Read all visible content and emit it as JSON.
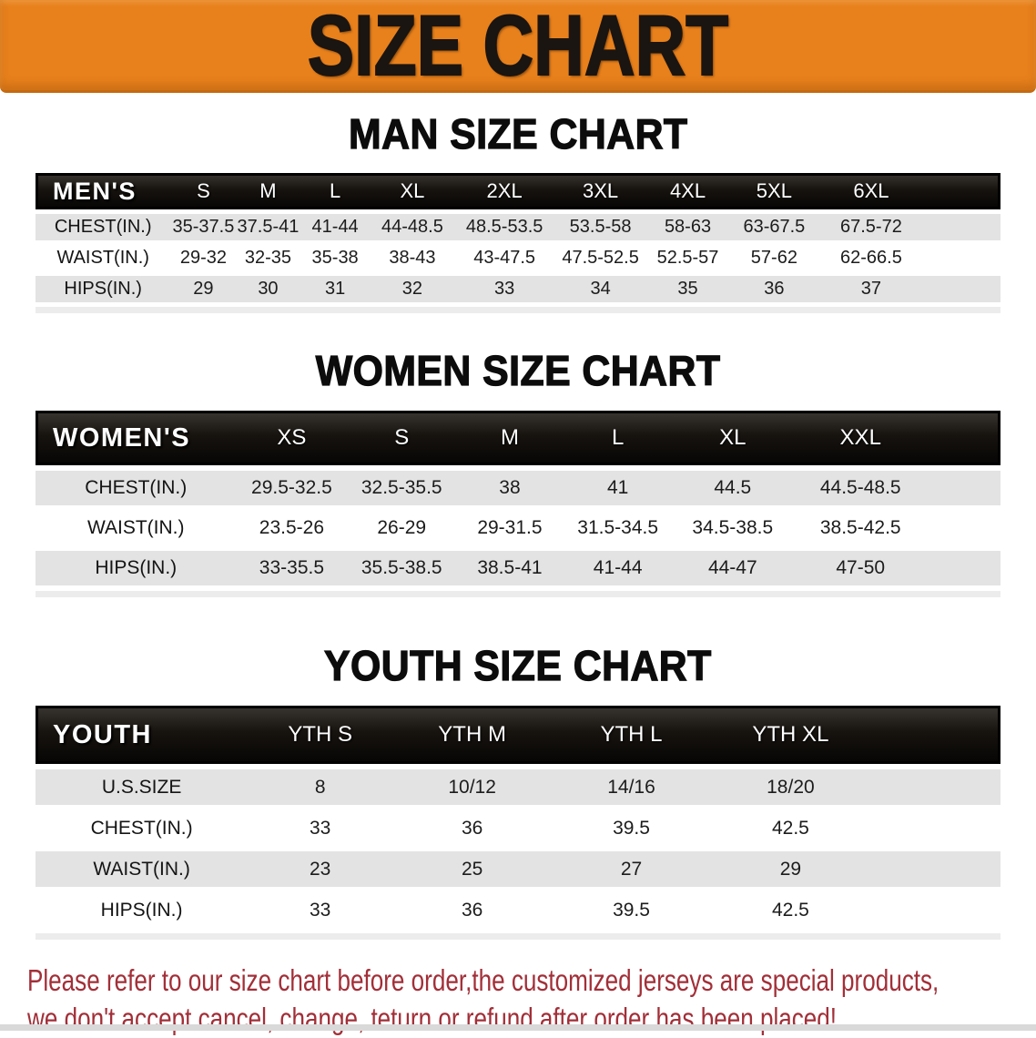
{
  "banner": {
    "title": "SIZE CHART"
  },
  "colors": {
    "banner_orange": "#E8811C",
    "band_black": "#17130F",
    "row_stripe": "#E3E3E3",
    "disclaimer_red": "#A22F38"
  },
  "sections": [
    {
      "heading": "MAN SIZE CHART",
      "label": "MEN'S",
      "columns": [
        "S",
        "M",
        "L",
        "XL",
        "2XL",
        "3XL",
        "4XL",
        "5XL",
        "6XL"
      ],
      "rows": [
        {
          "label": "CHEST(IN.)",
          "values": [
            "35-37.5",
            "37.5-41",
            "41-44",
            "44-48.5",
            "48.5-53.5",
            "53.5-58",
            "58-63",
            "63-67.5",
            "67.5-72"
          ]
        },
        {
          "label": "WAIST(IN.)",
          "values": [
            "29-32",
            "32-35",
            "35-38",
            "38-43",
            "43-47.5",
            "47.5-52.5",
            "52.5-57",
            "57-62",
            "62-66.5"
          ]
        },
        {
          "label": "HIPS(IN.)",
          "values": [
            "29",
            "30",
            "31",
            "32",
            "33",
            "34",
            "35",
            "36",
            "37"
          ]
        }
      ]
    },
    {
      "heading": "WOMEN SIZE CHART",
      "label": "WOMEN'S",
      "columns": [
        "XS",
        "S",
        "M",
        "L",
        "XL",
        "XXL"
      ],
      "rows": [
        {
          "label": "CHEST(IN.)",
          "values": [
            "29.5-32.5",
            "32.5-35.5",
            "38",
            "41",
            "44.5",
            "44.5-48.5"
          ]
        },
        {
          "label": "WAIST(IN.)",
          "values": [
            "23.5-26",
            "26-29",
            "29-31.5",
            "31.5-34.5",
            "34.5-38.5",
            "38.5-42.5"
          ]
        },
        {
          "label": "HIPS(IN.)",
          "values": [
            "33-35.5",
            "35.5-38.5",
            "38.5-41",
            "41-44",
            "44-47",
            "47-50"
          ]
        }
      ]
    },
    {
      "heading": "YOUTH SIZE CHART",
      "label": "YOUTH",
      "columns": [
        "YTH S",
        "YTH M",
        "YTH L",
        "YTH XL"
      ],
      "rows": [
        {
          "label": "U.S.SIZE",
          "values": [
            "8",
            "10/12",
            "14/16",
            "18/20"
          ]
        },
        {
          "label": "CHEST(IN.)",
          "values": [
            "33",
            "36",
            "39.5",
            "42.5"
          ]
        },
        {
          "label": "WAIST(IN.)",
          "values": [
            "23",
            "25",
            "27",
            "29"
          ]
        },
        {
          "label": "HIPS(IN.)",
          "values": [
            "33",
            "36",
            "39.5",
            "42.5"
          ]
        }
      ]
    }
  ],
  "disclaimer": {
    "line1": "Please refer to our size chart before order,the customized jerseys are special products,",
    "line2": "we don't accept cancel, change, teturn or refund after order has been placed!"
  }
}
